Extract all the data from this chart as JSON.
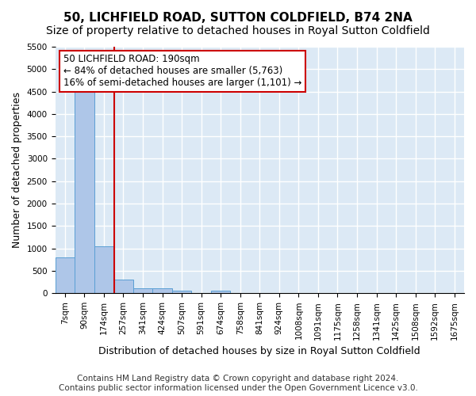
{
  "title": "50, LICHFIELD ROAD, SUTTON COLDFIELD, B74 2NA",
  "subtitle": "Size of property relative to detached houses in Royal Sutton Coldfield",
  "xlabel": "Distribution of detached houses by size in Royal Sutton Coldfield",
  "ylabel": "Number of detached properties",
  "footer_line1": "Contains HM Land Registry data © Crown copyright and database right 2024.",
  "footer_line2": "Contains public sector information licensed under the Open Government Licence v3.0.",
  "annotation_line1": "50 LICHFIELD ROAD: 190sqm",
  "annotation_line2": "← 84% of detached houses are smaller (5,763)",
  "annotation_line3": "16% of semi-detached houses are larger (1,101) →",
  "bins": [
    "7sqm",
    "90sqm",
    "174sqm",
    "257sqm",
    "341sqm",
    "424sqm",
    "507sqm",
    "591sqm",
    "674sqm",
    "758sqm",
    "841sqm",
    "924sqm",
    "1008sqm",
    "1091sqm",
    "1175sqm",
    "1258sqm",
    "1341sqm",
    "1425sqm",
    "1508sqm",
    "1592sqm",
    "1675sqm"
  ],
  "values": [
    800,
    4600,
    1050,
    300,
    105,
    105,
    50,
    0,
    50,
    0,
    0,
    0,
    0,
    0,
    0,
    0,
    0,
    0,
    0,
    0,
    0
  ],
  "bar_color": "#aec6e8",
  "bar_edge_color": "#5a9fd4",
  "property_line_x": 2.55,
  "property_line_color": "#cc0000",
  "annotation_box_color": "#cc0000",
  "background_color": "#dce9f5",
  "ylim": [
    0,
    5500
  ],
  "yticks": [
    0,
    500,
    1000,
    1500,
    2000,
    2500,
    3000,
    3500,
    4000,
    4500,
    5000,
    5500
  ],
  "grid_color": "#ffffff",
  "title_fontsize": 11,
  "subtitle_fontsize": 10,
  "tick_fontsize": 7.5,
  "ylabel_fontsize": 9,
  "xlabel_fontsize": 9,
  "annotation_fontsize": 8.5,
  "footer_fontsize": 7.5
}
